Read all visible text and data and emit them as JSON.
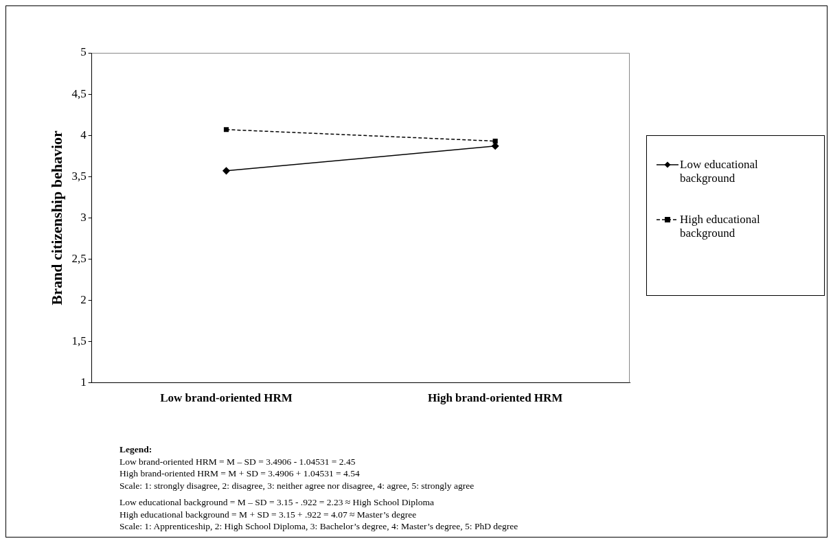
{
  "chart_data": {
    "type": "line",
    "ylabel": "Brand citizenship behavior",
    "categories": [
      "Low brand-oriented HRM",
      "High brand-oriented HRM"
    ],
    "series": [
      {
        "name": "Low educational background",
        "color": "#000000",
        "values": [
          3.57,
          3.87
        ],
        "marker": "diamond",
        "line_style": "solid"
      },
      {
        "name": "High educational background",
        "color": "#000000",
        "values": [
          4.07,
          3.93
        ],
        "marker": "square",
        "line_style": "dashed"
      }
    ],
    "ylim": [
      1,
      5
    ],
    "yticks": [
      1,
      {
        "value": 1.5,
        "label": "1,5"
      },
      2,
      {
        "value": 2.5,
        "label": "2,5"
      },
      3,
      {
        "value": 3.5,
        "label": "3,5"
      },
      4,
      {
        "value": 4.5,
        "label": "4,5"
      },
      5
    ],
    "grid": false,
    "legend": "right",
    "annotations": [
      "Legend:",
      "Low brand-oriented HRM = M – SD = 3.4906 - 1.04531 = 2.45",
      "High brand-oriented HRM = M + SD = 3.4906 + 1.04531 = 4.54",
      "Scale: 1: strongly disagree, 2: disagree, 3: neither agree nor disagree, 4: agree, 5: strongly agree",
      "Low educational background = M – SD = 3.15 - .922 = 2.23 ≈ High School Diploma",
      "High educational background = M + SD = 3.15 + .922 = 4.07 ≈ Master’s degree",
      "Scale: 1: Apprenticeship, 2: High School Diploma, 3: Bachelor’s degree, 4: Master’s degree, 5: PhD degree"
    ]
  }
}
